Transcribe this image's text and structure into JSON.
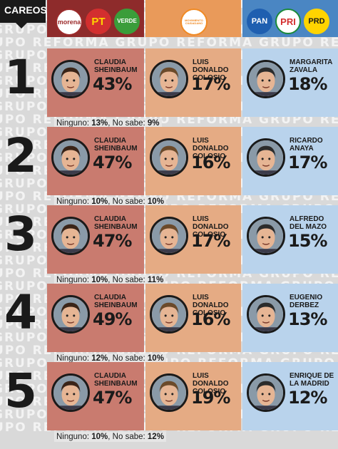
{
  "header": {
    "tag": "CAREOS"
  },
  "parties": [
    {
      "name": "morena",
      "label": "morena",
      "color": "#9c2b2b",
      "text": "#9c2b2b",
      "bg": "#ffffff"
    },
    {
      "name": "pt",
      "label": "PT",
      "color": "#d32f2f",
      "text": "#ffd400",
      "bg": "#d32f2f"
    },
    {
      "name": "verde",
      "label": "VERDE",
      "color": "#3a9d3a",
      "text": "#ffffff",
      "bg": "#3a9d3a"
    },
    {
      "name": "mc",
      "label": "MOVIMIENTO CIUDADANO",
      "color": "#f08a24",
      "text": "#f08a24",
      "bg": "#ffffff"
    },
    {
      "name": "pan",
      "label": "PAN",
      "color": "#1f5fb0",
      "text": "#ffffff",
      "bg": "#1f5fb0"
    },
    {
      "name": "pri",
      "label": "PRI",
      "color": "#1a8a3a",
      "text": "#d32f2f",
      "bg": "#ffffff"
    },
    {
      "name": "prd",
      "label": "PRD",
      "color": "#ffd400",
      "text": "#1a1a1a",
      "bg": "#ffd400"
    }
  ],
  "watermark": "GRUPO REFORMA GRUPO REFORMA GRUPO REFORMA",
  "colors": {
    "col1": "#c97b6f",
    "col2": "#e5ab84",
    "col3": "#b9d3ec",
    "head1": "#8e2b2b",
    "head2": "#e99a5a",
    "head3": "#4a86c3"
  },
  "chart_data": {
    "type": "table",
    "matchups": [
      {
        "number": "1",
        "candidates": [
          {
            "name": "CLAUDIA SHEINBAUM",
            "value": 43,
            "display": "43%"
          },
          {
            "name": "LUIS DONALDO COLOSIO",
            "value": 17,
            "display": "17%"
          },
          {
            "name": "MARGARITA ZAVALA",
            "value": 18,
            "display": "18%"
          }
        ],
        "ninguno": "13%",
        "no_sabe": "9%"
      },
      {
        "number": "2",
        "candidates": [
          {
            "name": "CLAUDIA SHEINBAUM",
            "value": 47,
            "display": "47%"
          },
          {
            "name": "LUIS DONALDO COLOSIO",
            "value": 16,
            "display": "16%"
          },
          {
            "name": "RICARDO ANAYA",
            "value": 17,
            "display": "17%"
          }
        ],
        "ninguno": "10%",
        "no_sabe": "10%"
      },
      {
        "number": "3",
        "candidates": [
          {
            "name": "CLAUDIA SHEINBAUM",
            "value": 47,
            "display": "47%"
          },
          {
            "name": "LUIS DONALDO COLOSIO",
            "value": 17,
            "display": "17%"
          },
          {
            "name": "ALFREDO DEL MAZO",
            "value": 15,
            "display": "15%"
          }
        ],
        "ninguno": "10%",
        "no_sabe": "11%"
      },
      {
        "number": "4",
        "candidates": [
          {
            "name": "CLAUDIA SHEINBAUM",
            "value": 49,
            "display": "49%"
          },
          {
            "name": "LUIS DONALDO COLOSIO",
            "value": 16,
            "display": "16%"
          },
          {
            "name": "EUGENIO DERBEZ",
            "value": 13,
            "display": "13%"
          }
        ],
        "ninguno": "12%",
        "no_sabe": "10%"
      },
      {
        "number": "5",
        "candidates": [
          {
            "name": "CLAUDIA SHEINBAUM",
            "value": 47,
            "display": "47%"
          },
          {
            "name": "LUIS DONALDO COLOSIO",
            "value": 19,
            "display": "19%"
          },
          {
            "name": "ENRIQUE DE LA MADRID",
            "value": 12,
            "display": "12%"
          }
        ],
        "ninguno": "10%",
        "no_sabe": "12%"
      }
    ],
    "footer_labels": {
      "ninguno": "Ninguno:",
      "no_sabe": "No sabe:"
    }
  }
}
